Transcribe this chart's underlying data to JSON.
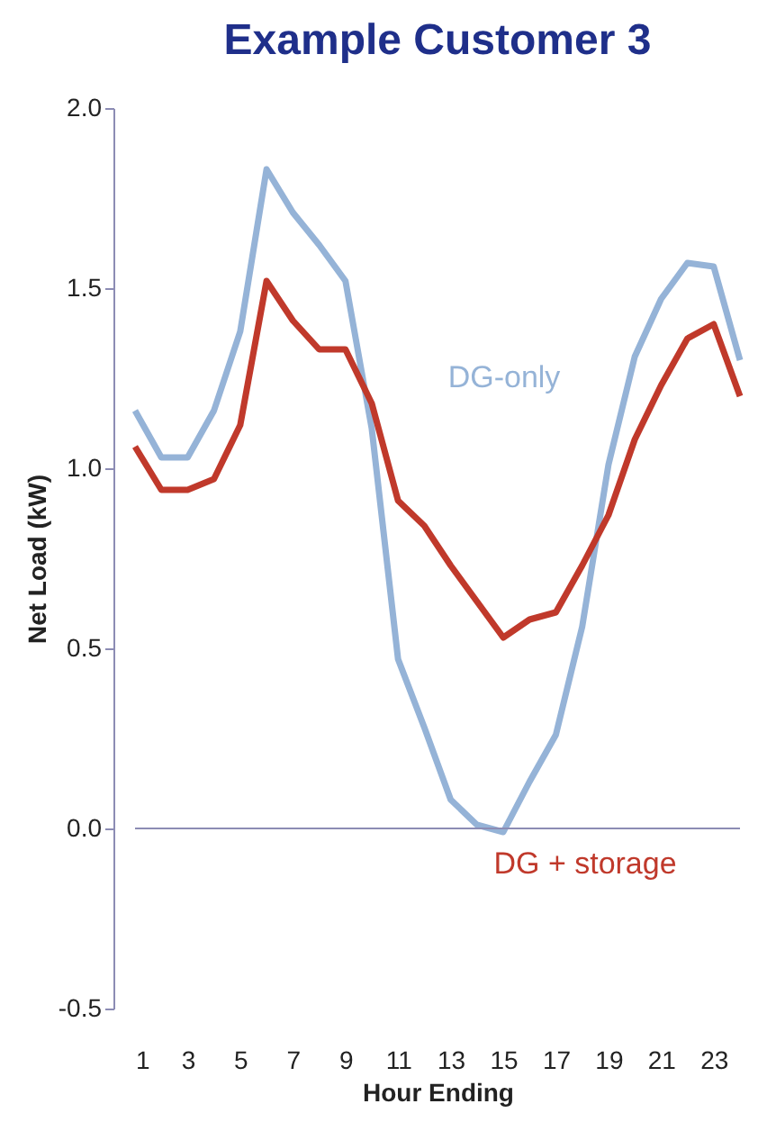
{
  "chart_data": {
    "type": "line",
    "title": "Example Customer 3",
    "xlabel": "Hour Ending",
    "ylabel": "Net Load (kW)",
    "x": [
      1,
      2,
      3,
      4,
      5,
      6,
      7,
      8,
      9,
      10,
      11,
      12,
      13,
      14,
      15,
      16,
      17,
      18,
      19,
      20,
      21,
      22,
      23,
      24
    ],
    "series": [
      {
        "name": "DG-only",
        "color": "#95b3d7",
        "values": [
          1.16,
          1.03,
          1.03,
          1.16,
          1.38,
          1.83,
          1.71,
          1.62,
          1.52,
          1.11,
          0.47,
          0.28,
          0.08,
          0.01,
          -0.01,
          0.13,
          0.26,
          0.56,
          1.01,
          1.31,
          1.47,
          1.57,
          1.56,
          1.3
        ]
      },
      {
        "name": "DG + storage",
        "color": "#c0392b",
        "values": [
          1.06,
          0.94,
          0.94,
          0.97,
          1.12,
          1.52,
          1.41,
          1.33,
          1.33,
          1.18,
          0.91,
          0.84,
          0.73,
          0.63,
          0.53,
          0.58,
          0.6,
          0.73,
          0.87,
          1.08,
          1.23,
          1.36,
          1.4,
          1.2
        ]
      }
    ],
    "xlim": [
      1,
      24
    ],
    "xticks": [
      1,
      3,
      5,
      7,
      9,
      11,
      13,
      15,
      17,
      19,
      21,
      23
    ],
    "ylim": [
      -0.5,
      2.0
    ],
    "yticks": [
      {
        "value": -0.5,
        "label": "-0.5"
      },
      {
        "value": 0,
        "label": "0.0"
      },
      {
        "value": 0.5,
        "label": "0.5"
      },
      {
        "value": 1,
        "label": "1.0"
      },
      {
        "value": 1.5,
        "label": "1.5"
      },
      {
        "value": 2,
        "label": "2.0"
      }
    ],
    "ref_lines": [
      {
        "axis": "y",
        "value": 0,
        "color": "#8c8cb4"
      }
    ],
    "grid": false,
    "legend": false,
    "marker": "none",
    "line_style": "solid"
  }
}
